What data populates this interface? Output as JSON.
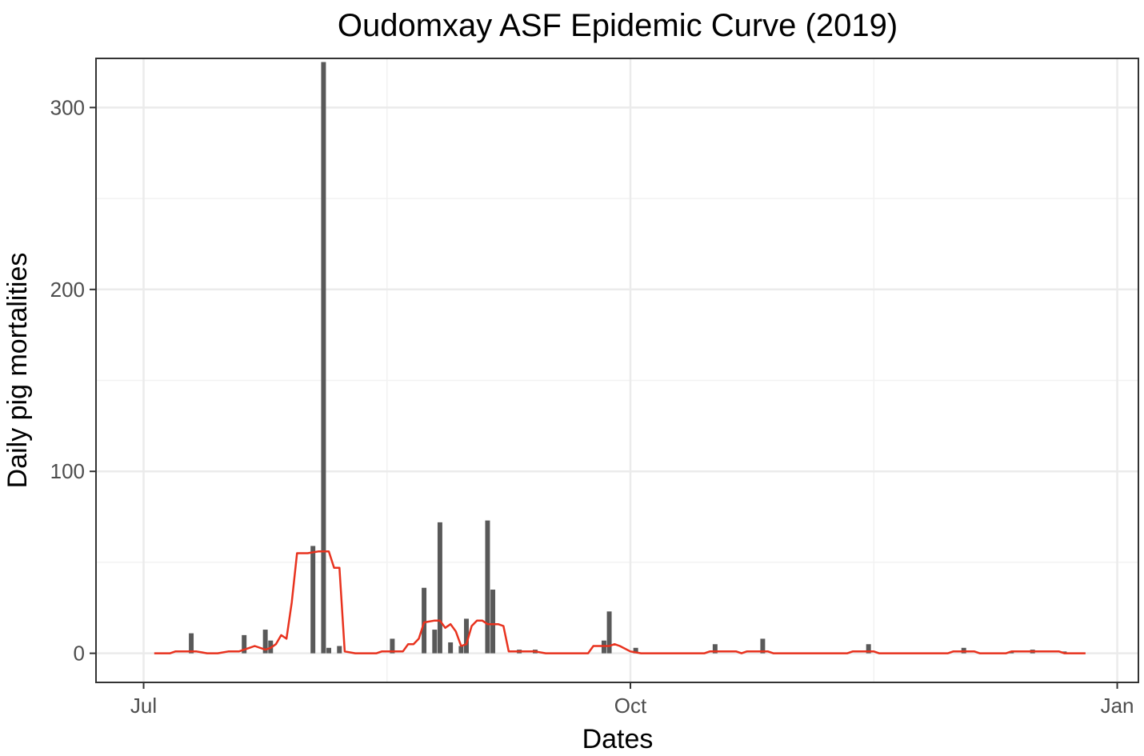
{
  "chart_data": {
    "type": "bar",
    "title": "Oudomxay ASF Epidemic Curve (2019)",
    "xlabel": "Dates",
    "ylabel": "Daily pig mortalities",
    "x_axis": {
      "type": "date",
      "range": [
        "2019-06-22",
        "2020-01-05"
      ],
      "ticks": [
        {
          "date": "2019-07-01",
          "label": "Jul"
        },
        {
          "date": "2019-10-01",
          "label": "Oct"
        },
        {
          "date": "2020-01-01",
          "label": "Jan"
        }
      ]
    },
    "y_axis": {
      "range": [
        -16,
        327
      ],
      "ticks": [
        {
          "value": 0,
          "label": "0"
        },
        {
          "value": 100,
          "label": "100"
        },
        {
          "value": 200,
          "label": "200"
        },
        {
          "value": 300,
          "label": "300"
        }
      ],
      "minor": [
        50,
        150,
        250
      ]
    },
    "grid": true,
    "legend": "none",
    "colors": {
      "bars": "#595959",
      "line": "#e8321e",
      "grid": "#ebebeb",
      "border": "#333333"
    },
    "series": [
      {
        "type": "bar",
        "points": [
          {
            "x": "2019-07-10",
            "y": 11
          },
          {
            "x": "2019-07-20",
            "y": 10
          },
          {
            "x": "2019-07-24",
            "y": 13
          },
          {
            "x": "2019-07-25",
            "y": 7
          },
          {
            "x": "2019-08-02",
            "y": 59
          },
          {
            "x": "2019-08-04",
            "y": 325
          },
          {
            "x": "2019-08-05",
            "y": 3
          },
          {
            "x": "2019-08-07",
            "y": 4
          },
          {
            "x": "2019-08-17",
            "y": 8
          },
          {
            "x": "2019-08-23",
            "y": 36
          },
          {
            "x": "2019-08-25",
            "y": 13
          },
          {
            "x": "2019-08-26",
            "y": 72
          },
          {
            "x": "2019-08-28",
            "y": 6
          },
          {
            "x": "2019-08-30",
            "y": 4
          },
          {
            "x": "2019-08-31",
            "y": 19
          },
          {
            "x": "2019-09-04",
            "y": 73
          },
          {
            "x": "2019-09-05",
            "y": 35
          },
          {
            "x": "2019-09-10",
            "y": 2
          },
          {
            "x": "2019-09-13",
            "y": 2
          },
          {
            "x": "2019-09-26",
            "y": 7
          },
          {
            "x": "2019-09-27",
            "y": 23
          },
          {
            "x": "2019-10-02",
            "y": 3
          },
          {
            "x": "2019-10-17",
            "y": 5
          },
          {
            "x": "2019-10-26",
            "y": 8
          },
          {
            "x": "2019-11-15",
            "y": 5
          },
          {
            "x": "2019-12-03",
            "y": 3
          },
          {
            "x": "2019-12-12",
            "y": 1
          },
          {
            "x": "2019-12-16",
            "y": 2
          },
          {
            "x": "2019-12-22",
            "y": 1
          }
        ]
      },
      {
        "type": "line",
        "points": [
          {
            "x": "2019-07-03",
            "y": 0
          },
          {
            "x": "2019-07-06",
            "y": 0
          },
          {
            "x": "2019-07-07",
            "y": 1
          },
          {
            "x": "2019-07-11",
            "y": 1
          },
          {
            "x": "2019-07-13",
            "y": 0
          },
          {
            "x": "2019-07-15",
            "y": 0
          },
          {
            "x": "2019-07-17",
            "y": 1
          },
          {
            "x": "2019-07-19",
            "y": 1
          },
          {
            "x": "2019-07-21",
            "y": 3
          },
          {
            "x": "2019-07-22",
            "y": 4
          },
          {
            "x": "2019-07-24",
            "y": 2
          },
          {
            "x": "2019-07-25",
            "y": 3
          },
          {
            "x": "2019-07-26",
            "y": 5
          },
          {
            "x": "2019-07-27",
            "y": 10
          },
          {
            "x": "2019-07-28",
            "y": 8
          },
          {
            "x": "2019-07-29",
            "y": 28
          },
          {
            "x": "2019-07-30",
            "y": 55
          },
          {
            "x": "2019-08-01",
            "y": 55
          },
          {
            "x": "2019-08-03",
            "y": 56
          },
          {
            "x": "2019-08-05",
            "y": 56
          },
          {
            "x": "2019-08-06",
            "y": 47
          },
          {
            "x": "2019-08-07",
            "y": 47
          },
          {
            "x": "2019-08-08",
            "y": 1
          },
          {
            "x": "2019-08-10",
            "y": 0
          },
          {
            "x": "2019-08-14",
            "y": 0
          },
          {
            "x": "2019-08-15",
            "y": 1
          },
          {
            "x": "2019-08-19",
            "y": 1
          },
          {
            "x": "2019-08-20",
            "y": 5
          },
          {
            "x": "2019-08-21",
            "y": 5
          },
          {
            "x": "2019-08-22",
            "y": 8
          },
          {
            "x": "2019-08-23",
            "y": 17
          },
          {
            "x": "2019-08-25",
            "y": 18
          },
          {
            "x": "2019-08-26",
            "y": 18
          },
          {
            "x": "2019-08-27",
            "y": 14
          },
          {
            "x": "2019-08-28",
            "y": 16
          },
          {
            "x": "2019-08-29",
            "y": 12
          },
          {
            "x": "2019-08-30",
            "y": 4
          },
          {
            "x": "2019-08-31",
            "y": 5
          },
          {
            "x": "2019-09-01",
            "y": 15
          },
          {
            "x": "2019-09-02",
            "y": 18
          },
          {
            "x": "2019-09-03",
            "y": 18
          },
          {
            "x": "2019-09-04",
            "y": 16
          },
          {
            "x": "2019-09-06",
            "y": 16
          },
          {
            "x": "2019-09-07",
            "y": 15
          },
          {
            "x": "2019-09-08",
            "y": 1
          },
          {
            "x": "2019-09-13",
            "y": 1
          },
          {
            "x": "2019-09-15",
            "y": 0
          },
          {
            "x": "2019-09-23",
            "y": 0
          },
          {
            "x": "2019-09-24",
            "y": 4
          },
          {
            "x": "2019-09-27",
            "y": 4
          },
          {
            "x": "2019-09-28",
            "y": 5
          },
          {
            "x": "2019-09-29",
            "y": 4
          },
          {
            "x": "2019-10-01",
            "y": 1
          },
          {
            "x": "2019-10-03",
            "y": 0
          },
          {
            "x": "2019-10-15",
            "y": 0
          },
          {
            "x": "2019-10-16",
            "y": 1
          },
          {
            "x": "2019-10-21",
            "y": 1
          },
          {
            "x": "2019-10-22",
            "y": 0
          },
          {
            "x": "2019-10-23",
            "y": 1
          },
          {
            "x": "2019-10-27",
            "y": 1
          },
          {
            "x": "2019-10-28",
            "y": 0
          },
          {
            "x": "2019-11-11",
            "y": 0
          },
          {
            "x": "2019-11-12",
            "y": 1
          },
          {
            "x": "2019-11-16",
            "y": 1
          },
          {
            "x": "2019-11-17",
            "y": 0
          },
          {
            "x": "2019-11-30",
            "y": 0
          },
          {
            "x": "2019-12-01",
            "y": 1
          },
          {
            "x": "2019-12-05",
            "y": 1
          },
          {
            "x": "2019-12-06",
            "y": 0
          },
          {
            "x": "2019-12-11",
            "y": 0
          },
          {
            "x": "2019-12-12",
            "y": 1
          },
          {
            "x": "2019-12-21",
            "y": 1
          },
          {
            "x": "2019-12-22",
            "y": 0
          },
          {
            "x": "2019-12-26",
            "y": 0
          }
        ]
      }
    ]
  }
}
